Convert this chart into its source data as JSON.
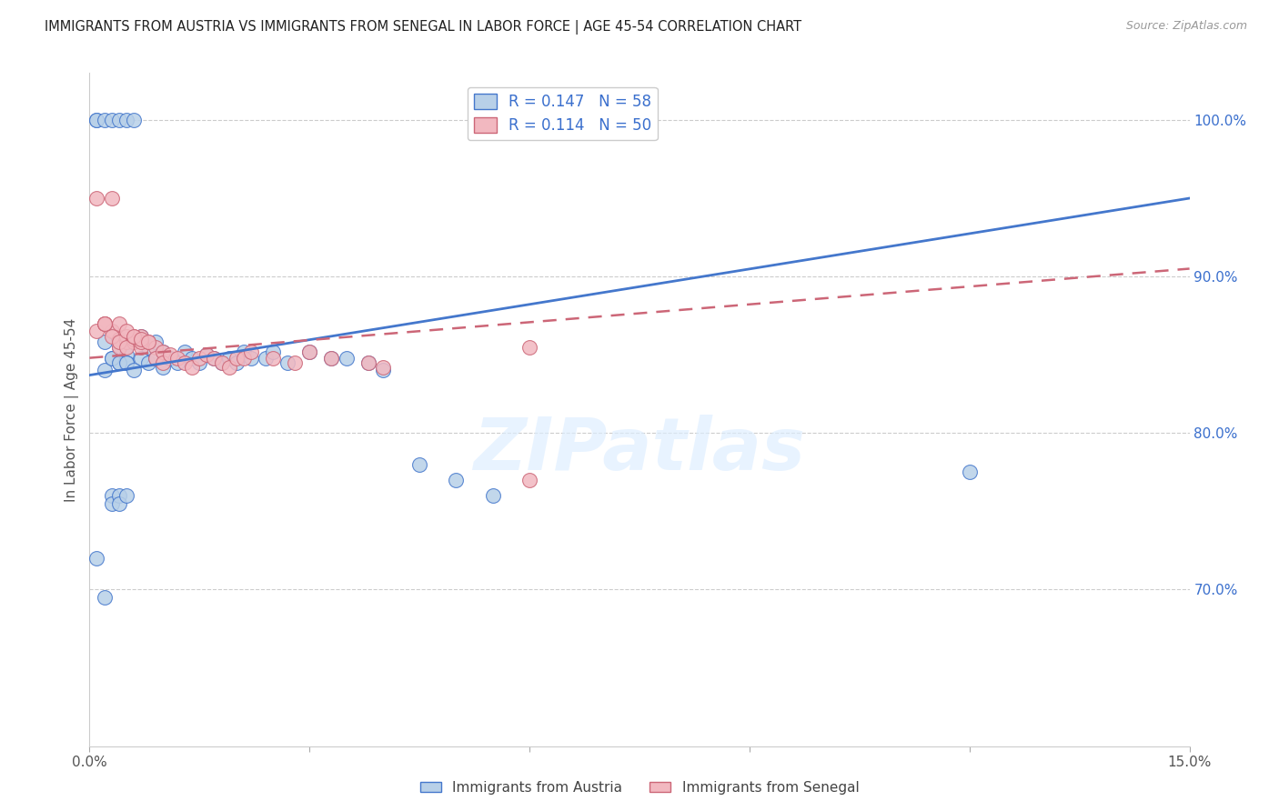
{
  "title": "IMMIGRANTS FROM AUSTRIA VS IMMIGRANTS FROM SENEGAL IN LABOR FORCE | AGE 45-54 CORRELATION CHART",
  "source": "Source: ZipAtlas.com",
  "ylabel": "In Labor Force | Age 45-54",
  "xlim": [
    0.0,
    0.15
  ],
  "ylim": [
    0.6,
    1.03
  ],
  "xticks": [
    0.0,
    0.03,
    0.06,
    0.09,
    0.12,
    0.15
  ],
  "xticklabels": [
    "0.0%",
    "",
    "",
    "",
    "",
    "15.0%"
  ],
  "yticks": [
    0.7,
    0.8,
    0.9,
    1.0
  ],
  "yticklabels": [
    "70.0%",
    "80.0%",
    "90.0%",
    "100.0%"
  ],
  "austria_color": "#b8d0e8",
  "senegal_color": "#f2b8c0",
  "austria_line_color": "#4477cc",
  "senegal_line_color": "#cc6677",
  "grid_color": "#cccccc",
  "R_austria": 0.147,
  "N_austria": 58,
  "R_senegal": 0.114,
  "N_senegal": 50,
  "watermark": "ZIPatlas",
  "austria_x": [
    0.002,
    0.003,
    0.004,
    0.004,
    0.005,
    0.005,
    0.006,
    0.007,
    0.007,
    0.008,
    0.008,
    0.009,
    0.009,
    0.01,
    0.01,
    0.011,
    0.012,
    0.013,
    0.014,
    0.015,
    0.016,
    0.017,
    0.018,
    0.019,
    0.02,
    0.021,
    0.022,
    0.024,
    0.025,
    0.027,
    0.03,
    0.033,
    0.035,
    0.038,
    0.04,
    0.045,
    0.05,
    0.055,
    0.002,
    0.003,
    0.004,
    0.005,
    0.006,
    0.001,
    0.002,
    0.003,
    0.003,
    0.004,
    0.004,
    0.005,
    0.001,
    0.001,
    0.002,
    0.003,
    0.004,
    0.005,
    0.006,
    0.12
  ],
  "austria_y": [
    0.858,
    0.848,
    0.845,
    0.855,
    0.85,
    0.845,
    0.858,
    0.862,
    0.848,
    0.855,
    0.845,
    0.858,
    0.848,
    0.852,
    0.842,
    0.848,
    0.845,
    0.852,
    0.848,
    0.845,
    0.85,
    0.848,
    0.845,
    0.848,
    0.845,
    0.852,
    0.848,
    0.848,
    0.852,
    0.845,
    0.852,
    0.848,
    0.848,
    0.845,
    0.84,
    0.78,
    0.77,
    0.76,
    0.84,
    0.848,
    0.845,
    0.845,
    0.84,
    0.72,
    0.695,
    0.76,
    0.755,
    0.76,
    0.755,
    0.76,
    1.0,
    1.0,
    1.0,
    1.0,
    1.0,
    1.0,
    1.0,
    0.775
  ],
  "senegal_x": [
    0.001,
    0.002,
    0.003,
    0.004,
    0.004,
    0.005,
    0.005,
    0.006,
    0.006,
    0.007,
    0.007,
    0.008,
    0.009,
    0.009,
    0.01,
    0.01,
    0.011,
    0.012,
    0.013,
    0.014,
    0.015,
    0.016,
    0.017,
    0.018,
    0.019,
    0.02,
    0.021,
    0.022,
    0.025,
    0.028,
    0.03,
    0.033,
    0.038,
    0.04,
    0.002,
    0.003,
    0.004,
    0.005,
    0.006,
    0.007,
    0.001,
    0.002,
    0.003,
    0.004,
    0.005,
    0.006,
    0.007,
    0.008,
    0.06,
    0.06
  ],
  "senegal_y": [
    0.865,
    0.87,
    0.865,
    0.86,
    0.855,
    0.858,
    0.862,
    0.858,
    0.86,
    0.862,
    0.855,
    0.858,
    0.855,
    0.848,
    0.852,
    0.845,
    0.85,
    0.848,
    0.845,
    0.842,
    0.848,
    0.85,
    0.848,
    0.845,
    0.842,
    0.848,
    0.848,
    0.852,
    0.848,
    0.845,
    0.852,
    0.848,
    0.845,
    0.842,
    0.87,
    0.862,
    0.858,
    0.855,
    0.862,
    0.858,
    0.95,
    0.87,
    0.95,
    0.87,
    0.865,
    0.862,
    0.86,
    0.858,
    0.77,
    0.855
  ]
}
